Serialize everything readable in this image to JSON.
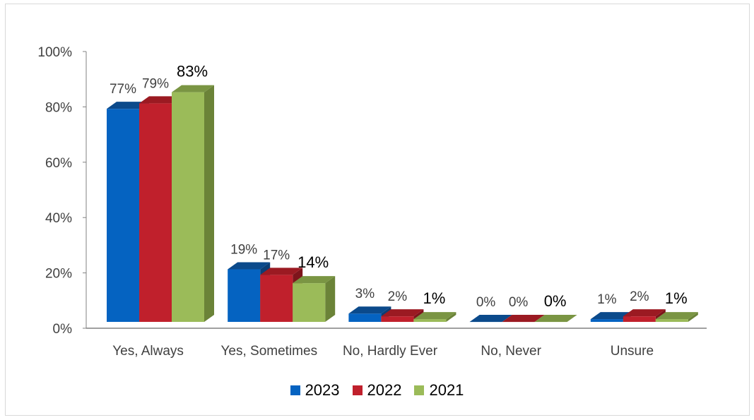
{
  "chart_data": {
    "type": "bar",
    "three_d": true,
    "categories": [
      "Yes, Always",
      "Yes, Sometimes",
      "No, Hardly Ever",
      "No, Never",
      "Unsure"
    ],
    "series": [
      {
        "name": "2023",
        "values": [
          77,
          19,
          3,
          0,
          1
        ],
        "labels": [
          "77%",
          "19%",
          "3%",
          "0%",
          "1%"
        ],
        "color": "#0563C1",
        "top": "#0B4A8B",
        "side": "#0B3E75"
      },
      {
        "name": "2022",
        "values": [
          79,
          17,
          2,
          0,
          2
        ],
        "labels": [
          "79%",
          "17%",
          "2%",
          "0%",
          "2%"
        ],
        "color": "#C0202C",
        "top": "#9B1A22",
        "side": "#7E141B"
      },
      {
        "name": "2021",
        "values": [
          83,
          14,
          1,
          0,
          1
        ],
        "labels": [
          "83%",
          "14%",
          "1%",
          "0%",
          "1%"
        ],
        "color": "#9BBB59",
        "top": "#7A9543",
        "side": "#6B8338"
      }
    ],
    "y_ticks": [
      "0%",
      "20%",
      "40%",
      "60%",
      "80%",
      "100%"
    ],
    "ylim": [
      0,
      100
    ],
    "grid": false,
    "legend_position": "bottom"
  }
}
